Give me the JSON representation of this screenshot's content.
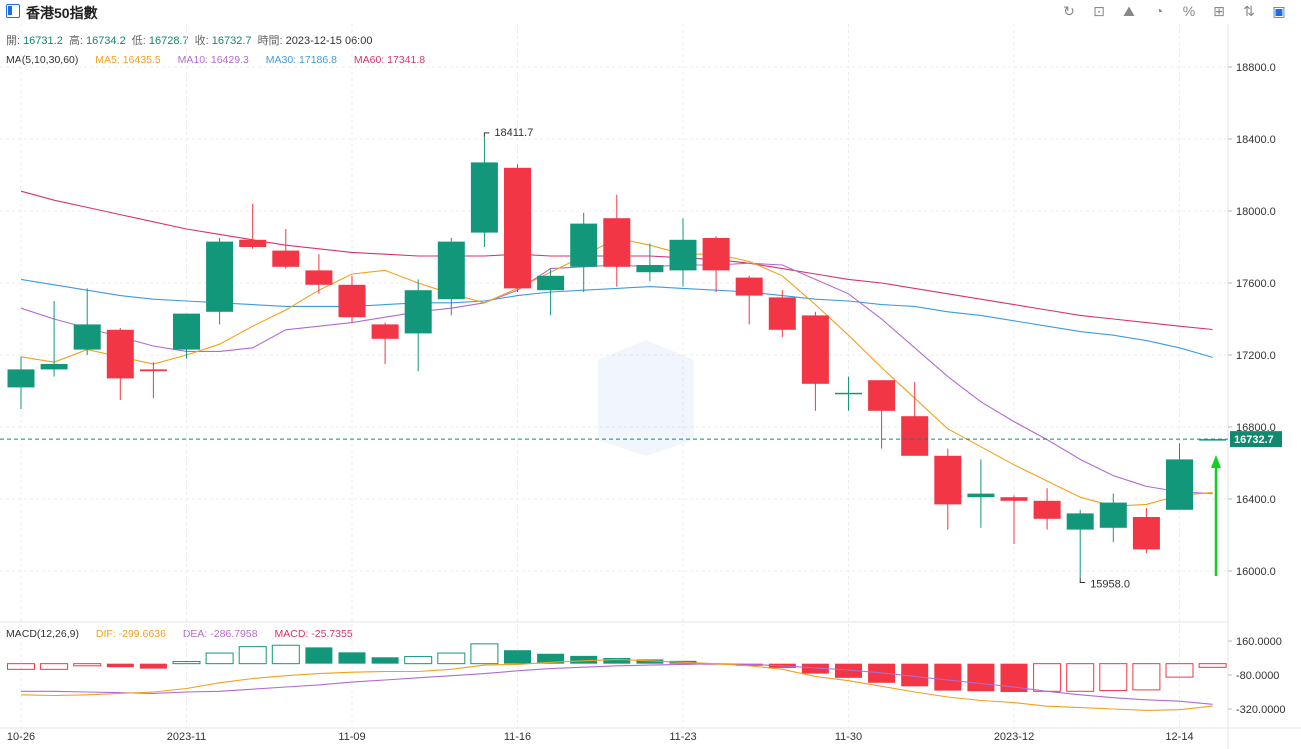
{
  "header": {
    "title": "香港50指數",
    "toolbar": [
      {
        "name": "refresh-icon",
        "glyph": "↻"
      },
      {
        "name": "draw-tool-icon",
        "glyph": "⊡"
      },
      {
        "name": "chart-type-icon",
        "glyph": "⛰"
      },
      {
        "name": "pie-icon",
        "glyph": "◔"
      },
      {
        "name": "percent-icon",
        "glyph": "%"
      },
      {
        "name": "grid-icon",
        "glyph": "⊞"
      },
      {
        "name": "sort-icon",
        "glyph": "⇅"
      },
      {
        "name": "panel-icon",
        "glyph": "▣"
      }
    ]
  },
  "ohlc": {
    "open_label": "開:",
    "open": "16731.2",
    "high_label": "高:",
    "high": "16734.2",
    "low_label": "低:",
    "low": "16728.7",
    "close_label": "收:",
    "close": "16732.7",
    "time_label": "時間:",
    "time": "2023-12-15 06:00"
  },
  "ma_legend": {
    "label": "MA(5,10,30,60)",
    "ma5": "MA5: 16435.5",
    "ma10": "MA10: 16429.3",
    "ma30": "MA30: 17186.8",
    "ma60": "MA60: 17341.8"
  },
  "macd_legend": {
    "label": "MACD(12,26,9)",
    "dif": "DIF: -299.6636",
    "dea": "DEA: -286.7958",
    "macd": "MACD: -25.7355"
  },
  "colors": {
    "up": "#13977b",
    "down": "#f23645",
    "ma5": "#f3a01e",
    "ma10": "#b26bd1",
    "ma30": "#3f9be0",
    "ma60": "#d8336a",
    "last_price": "#0f8a6e",
    "arrow": "#10d020"
  },
  "chart_data": {
    "type": "candlestick",
    "price_axis": {
      "min": 16000,
      "max": 18800,
      "ticks": [
        "16000.0",
        "16400.0",
        "16800.0",
        "17200.0",
        "17600.0",
        "18000.0",
        "18400.0",
        "18800.0"
      ]
    },
    "x_tick_labels": [
      {
        "index": 0,
        "label": "10-26"
      },
      {
        "index": 5,
        "label": "2023-11"
      },
      {
        "index": 10,
        "label": "11-09"
      },
      {
        "index": 15,
        "label": "11-16"
      },
      {
        "index": 20,
        "label": "11-23"
      },
      {
        "index": 25,
        "label": "11-30"
      },
      {
        "index": 30,
        "label": "2023-12"
      },
      {
        "index": 35,
        "label": "12-14"
      }
    ],
    "candles": [
      {
        "o": 17020,
        "h": 17190,
        "l": 16900,
        "c": 17120
      },
      {
        "o": 17120,
        "h": 17500,
        "l": 17080,
        "c": 17150
      },
      {
        "o": 17230,
        "h": 17570,
        "l": 17200,
        "c": 17370
      },
      {
        "o": 17340,
        "h": 17350,
        "l": 16950,
        "c": 17070
      },
      {
        "o": 17120,
        "h": 17160,
        "l": 16960,
        "c": 17110
      },
      {
        "o": 17230,
        "h": 17420,
        "l": 17180,
        "c": 17430
      },
      {
        "o": 17440,
        "h": 17850,
        "l": 17370,
        "c": 17830
      },
      {
        "o": 17840,
        "h": 18040,
        "l": 17790,
        "c": 17800
      },
      {
        "o": 17780,
        "h": 17900,
        "l": 17680,
        "c": 17690
      },
      {
        "o": 17670,
        "h": 17760,
        "l": 17540,
        "c": 17590
      },
      {
        "o": 17590,
        "h": 17640,
        "l": 17380,
        "c": 17410
      },
      {
        "o": 17370,
        "h": 17380,
        "l": 17150,
        "c": 17290
      },
      {
        "o": 17320,
        "h": 17620,
        "l": 17110,
        "c": 17560
      },
      {
        "o": 17510,
        "h": 17850,
        "l": 17420,
        "c": 17830
      },
      {
        "o": 17880,
        "h": 18411.7,
        "l": 17800,
        "c": 18270
      },
      {
        "o": 18240,
        "h": 18260,
        "l": 17550,
        "c": 17570
      },
      {
        "o": 17560,
        "h": 17680,
        "l": 17420,
        "c": 17640
      },
      {
        "o": 17690,
        "h": 17990,
        "l": 17550,
        "c": 17930
      },
      {
        "o": 17960,
        "h": 18090,
        "l": 17580,
        "c": 17690
      },
      {
        "o": 17660,
        "h": 17820,
        "l": 17610,
        "c": 17700
      },
      {
        "o": 17670,
        "h": 17960,
        "l": 17580,
        "c": 17840
      },
      {
        "o": 17850,
        "h": 17860,
        "l": 17550,
        "c": 17670
      },
      {
        "o": 17630,
        "h": 17640,
        "l": 17370,
        "c": 17530
      },
      {
        "o": 17520,
        "h": 17560,
        "l": 17300,
        "c": 17340
      },
      {
        "o": 17420,
        "h": 17440,
        "l": 16890,
        "c": 17040
      },
      {
        "o": 16990,
        "h": 17080,
        "l": 16890,
        "c": 16990
      },
      {
        "o": 17060,
        "h": 17060,
        "l": 16680,
        "c": 16890
      },
      {
        "o": 16860,
        "h": 17050,
        "l": 16650,
        "c": 16640
      },
      {
        "o": 16640,
        "h": 16680,
        "l": 16230,
        "c": 16370
      },
      {
        "o": 16410,
        "h": 16620,
        "l": 16240,
        "c": 16430
      },
      {
        "o": 16410,
        "h": 16420,
        "l": 16150,
        "c": 16390
      },
      {
        "o": 16390,
        "h": 16460,
        "l": 16230,
        "c": 16290
      },
      {
        "o": 16230,
        "h": 16340,
        "l": 15958,
        "c": 16320
      },
      {
        "o": 16240,
        "h": 16430,
        "l": 16160,
        "c": 16380
      },
      {
        "o": 16300,
        "h": 16350,
        "l": 16100,
        "c": 16120
      },
      {
        "o": 16340,
        "h": 16710,
        "l": 16340,
        "c": 16620
      },
      {
        "o": 16731.2,
        "h": 16734.2,
        "l": 16728.7,
        "c": 16732.7
      }
    ],
    "ma5": [
      17190,
      17160,
      17230,
      17190,
      17150,
      17200,
      17260,
      17360,
      17450,
      17560,
      17650,
      17670,
      17600,
      17540,
      17490,
      17570,
      17660,
      17750,
      17850,
      17810,
      17760,
      17760,
      17720,
      17640,
      17480,
      17310,
      17130,
      16960,
      16790,
      16690,
      16590,
      16500,
      16410,
      16360,
      16370,
      16420,
      16435.5
    ],
    "ma10": [
      17460,
      17400,
      17350,
      17300,
      17250,
      17220,
      17220,
      17240,
      17340,
      17360,
      17380,
      17410,
      17440,
      17460,
      17490,
      17560,
      17680,
      17690,
      17700,
      17690,
      17700,
      17700,
      17710,
      17700,
      17620,
      17540,
      17400,
      17240,
      17080,
      16940,
      16830,
      16730,
      16620,
      16530,
      16470,
      16440,
      16429.3
    ],
    "ma30": [
      17620,
      17590,
      17560,
      17530,
      17510,
      17500,
      17490,
      17480,
      17470,
      17470,
      17470,
      17480,
      17490,
      17490,
      17500,
      17530,
      17550,
      17560,
      17570,
      17580,
      17570,
      17560,
      17550,
      17530,
      17510,
      17500,
      17480,
      17470,
      17440,
      17420,
      17390,
      17360,
      17330,
      17310,
      17280,
      17240,
      17186.8
    ],
    "ma60": [
      18110,
      18060,
      18020,
      17980,
      17940,
      17900,
      17870,
      17840,
      17810,
      17790,
      17770,
      17760,
      17750,
      17750,
      17750,
      17760,
      17750,
      17750,
      17750,
      17750,
      17740,
      17730,
      17710,
      17680,
      17650,
      17620,
      17600,
      17570,
      17540,
      17510,
      17480,
      17450,
      17420,
      17400,
      17380,
      17360,
      17341.8
    ],
    "last_price": 16732.7,
    "last_price_label": "16732.7",
    "max_label": "18411.7",
    "min_label": "15958.0",
    "macd_axis": {
      "ticks": [
        "160.0000",
        "-80.0000",
        "-320.0000"
      ],
      "min": -320,
      "max": 160
    },
    "macd_hist": [
      -40,
      -40,
      -15,
      -25,
      -35,
      15,
      75,
      120,
      130,
      115,
      80,
      45,
      50,
      75,
      140,
      95,
      70,
      55,
      40,
      30,
      20,
      -5,
      -15,
      -30,
      -70,
      -100,
      -135,
      -160,
      -190,
      -195,
      -200,
      -195,
      -195,
      -190,
      -185,
      -95,
      -25.7355
    ],
    "macd_dif": [
      -220,
      -225,
      -220,
      -210,
      -200,
      -175,
      -135,
      -105,
      -85,
      -70,
      -60,
      -55,
      -55,
      -40,
      -10,
      -5,
      10,
      20,
      30,
      20,
      10,
      0,
      -15,
      -40,
      -90,
      -120,
      -160,
      -200,
      -235,
      -260,
      -275,
      -300,
      -310,
      -320,
      -330,
      -325,
      -299.6636
    ],
    "macd_dea": [
      -195,
      -195,
      -200,
      -205,
      -210,
      -200,
      -195,
      -180,
      -165,
      -150,
      -130,
      -115,
      -100,
      -85,
      -70,
      -50,
      -35,
      -25,
      -15,
      -10,
      -5,
      0,
      -5,
      -15,
      -30,
      -45,
      -65,
      -90,
      -115,
      -140,
      -165,
      -195,
      -220,
      -240,
      -255,
      -265,
      -286.7958
    ]
  }
}
